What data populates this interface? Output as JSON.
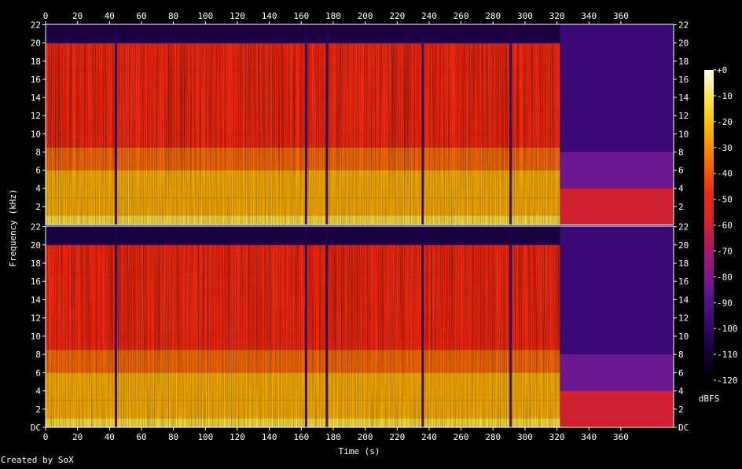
{
  "chart_data": {
    "type": "heatmap",
    "subtype": "spectrogram",
    "channels": 2,
    "xlabel": "Time (s)",
    "ylabel": "Frequency (kHz)",
    "x_ticks": [
      0,
      20,
      40,
      60,
      80,
      100,
      120,
      140,
      160,
      180,
      200,
      220,
      240,
      260,
      280,
      300,
      320,
      340,
      360
    ],
    "y_ticks_top": [
      "22",
      "20",
      "18",
      "16",
      "14",
      "12",
      "10",
      "8",
      "6",
      "4",
      "2"
    ],
    "y_ticks_bottom": [
      "22",
      "20",
      "18",
      "16",
      "14",
      "12",
      "10",
      "8",
      "6",
      "4",
      "2",
      "DC"
    ],
    "y_tick_values": [
      22,
      20,
      18,
      16,
      14,
      12,
      10,
      8,
      6,
      4,
      2,
      0
    ],
    "xlim": [
      0,
      393
    ],
    "ylim": [
      0,
      22.05
    ],
    "legend": {
      "label": "dBFS",
      "ticks": [
        "+0",
        "-10",
        "-20",
        "-30",
        "-40",
        "-50",
        "-60",
        "-70",
        "-80",
        "-90",
        "-100",
        "-110",
        "-120"
      ],
      "tick_values": [
        0,
        -10,
        -20,
        -30,
        -40,
        -50,
        -60,
        -70,
        -80,
        -90,
        -100,
        -110,
        -120
      ],
      "range": [
        -120,
        0
      ]
    },
    "features": {
      "music_end_s": 322,
      "dropouts_s": [
        44,
        163,
        176,
        236,
        291
      ],
      "lowpass_khz": 20
    }
  },
  "footer": {
    "credit": "Created by SoX"
  },
  "colors": {
    "background": "#000000",
    "text": "#ffffff",
    "colormap": [
      "#000000",
      "#1a0040",
      "#3c0a78",
      "#6c1890",
      "#a01878",
      "#d02030",
      "#f02810",
      "#f86a08",
      "#fcb000",
      "#fde040",
      "#fffff0"
    ]
  }
}
